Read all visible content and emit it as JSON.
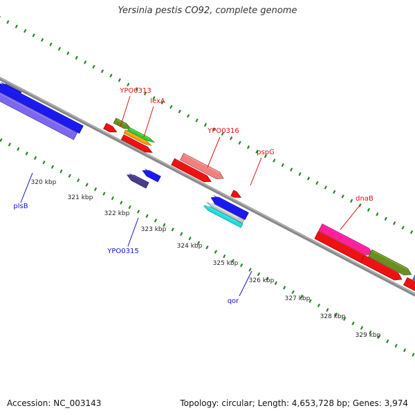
{
  "title": "Yersinia pestis CO92, complete genome",
  "accession": "Accession: NC_003143",
  "topology": "Topology: circular; Length: 4,653,728 bp; Genes: 3,974",
  "colors": {
    "backbone": "#888888",
    "tick": "#228822",
    "label_forward": "#dd1111",
    "label_reverse": "#1111cc",
    "scale_label": "#222222"
  },
  "ticks": {
    "inner": [
      {
        "label": "320 kbp"
      },
      {
        "label": "321 kbp"
      },
      {
        "label": "322 kbp"
      },
      {
        "label": "323 kbp"
      },
      {
        "label": "324 kbp"
      },
      {
        "label": "325 kbp"
      },
      {
        "label": "326 kbp"
      },
      {
        "label": "327 kbp"
      },
      {
        "label": "328 kbp"
      },
      {
        "label": "329 kbp"
      }
    ]
  },
  "features": [
    {
      "strand": "forward",
      "color": "#6b8e23"
    },
    {
      "strand": "forward",
      "color": "#33cc33"
    },
    {
      "strand": "forward",
      "color": "#ff9900"
    },
    {
      "strand": "forward",
      "color": "#ee1111"
    },
    {
      "strand": "forward",
      "color": "#ee1111"
    },
    {
      "strand": "forward",
      "color": "#f08080"
    },
    {
      "strand": "forward",
      "color": "#ee1111"
    },
    {
      "strand": "forward",
      "color": "#ee1111"
    },
    {
      "strand": "forward",
      "color": "#ff2299"
    },
    {
      "strand": "forward",
      "color": "#ee1111"
    },
    {
      "strand": "forward",
      "color": "#6b8e23"
    },
    {
      "strand": "forward",
      "color": "#ee1111"
    },
    {
      "strand": "forward",
      "color": "#4682b4"
    },
    {
      "strand": "forward",
      "color": "#ee1111"
    },
    {
      "strand": "reverse",
      "color": "#1a1aee"
    },
    {
      "strand": "reverse",
      "color": "#1a1aee"
    },
    {
      "strand": "reverse",
      "color": "#7b68ee"
    },
    {
      "strand": "reverse",
      "color": "#1a1aee"
    },
    {
      "strand": "reverse",
      "color": "#483d8b"
    },
    {
      "strand": "reverse",
      "color": "#1a1aee"
    },
    {
      "strand": "reverse",
      "color": "#c8c8c8"
    },
    {
      "strand": "reverse",
      "color": "#22dddd"
    }
  ],
  "gene_labels": [
    {
      "text": "YPO0313",
      "strand": "forward"
    },
    {
      "text": "lexA",
      "strand": "forward"
    },
    {
      "text": "YPO0316",
      "strand": "forward"
    },
    {
      "text": "pspG",
      "strand": "forward"
    },
    {
      "text": "dnaB",
      "strand": "forward"
    },
    {
      "text": "plsB",
      "strand": "reverse"
    },
    {
      "text": "YPO0315",
      "strand": "reverse"
    },
    {
      "text": "qor",
      "strand": "reverse"
    }
  ]
}
